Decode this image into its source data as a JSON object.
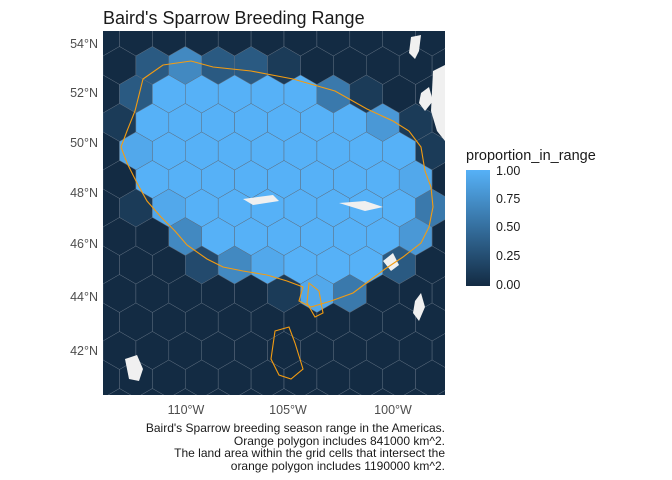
{
  "title": "Baird's Sparrow Breeding Range",
  "map": {
    "ocean_color": "#1b3a57",
    "hex_low_color": "#132B43",
    "hex_high_color": "#56B1F7",
    "range_outline_color": "#f39c12",
    "land_outside_color": "#f0f0f0"
  },
  "y_axis_labels": [
    "54°N",
    "52°N",
    "50°N",
    "48°N",
    "46°N",
    "44°N",
    "42°N"
  ],
  "x_axis_labels": [
    "110°W",
    "105°W",
    "100°W"
  ],
  "legend": {
    "title": "proportion_in_range",
    "ticks": [
      "1.00",
      "0.75",
      "0.50",
      "0.25",
      "0.00"
    ]
  },
  "caption": [
    "Baird's Sparrow breeding season range in the Americas.",
    "Orange polygon includes 841000 km^2.",
    "The land area within the grid cells that intersect the",
    "orange polygon includes 1190000 km^2."
  ]
}
